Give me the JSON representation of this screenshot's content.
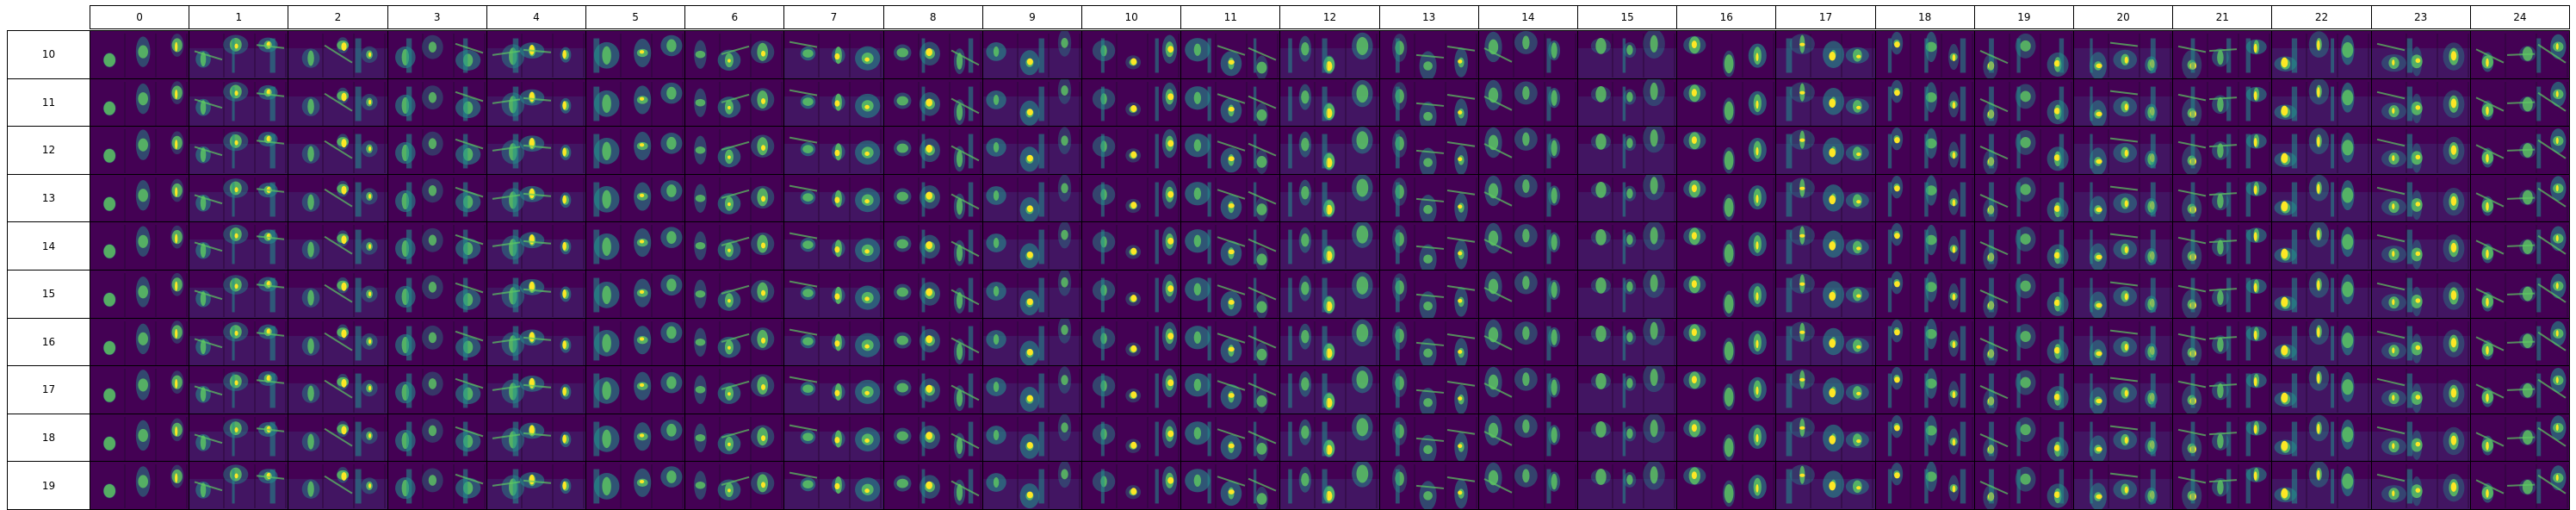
{
  "chart_data": {
    "type": "heatmap",
    "title": "",
    "xlabel": "",
    "ylabel": "",
    "columns": [
      "0",
      "1",
      "2",
      "3",
      "4",
      "5",
      "6",
      "7",
      "8",
      "9",
      "10",
      "11",
      "12",
      "13",
      "14",
      "15",
      "16",
      "17",
      "18",
      "19",
      "20",
      "21",
      "22",
      "23",
      "24"
    ],
    "rows": [
      "10",
      "11",
      "12",
      "13",
      "14",
      "15",
      "16",
      "17",
      "18",
      "19"
    ],
    "colormap": "viridis",
    "colors": {
      "background": "#440154",
      "low": "#3b528b",
      "mid": "#21918c",
      "high": "#5ec962",
      "peak": "#fde725"
    }
  }
}
